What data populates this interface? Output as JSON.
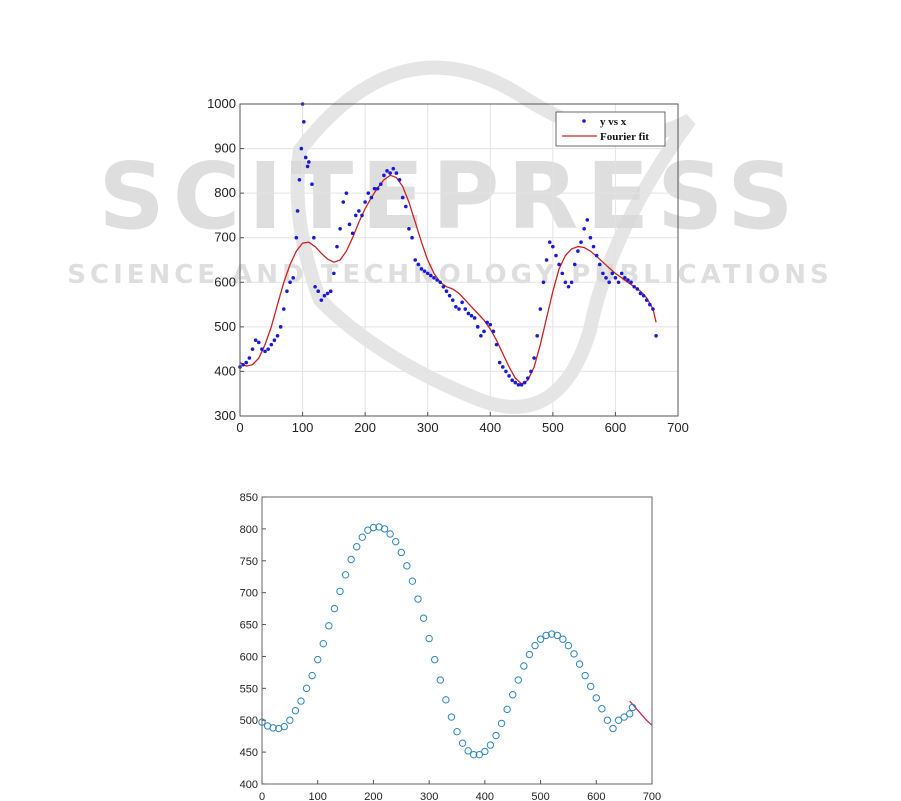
{
  "watermark": {
    "word": "SCITEPRESS",
    "tagline": "SCIENCE AND TECHNOLOGY PUBLICATIONS",
    "color": "#d9d9d9"
  },
  "chart_data": [
    {
      "type": "scatter",
      "xlim": [
        0,
        700
      ],
      "ylim": [
        300,
        1000
      ],
      "xticks": [
        0,
        100,
        200,
        300,
        400,
        500,
        600,
        700
      ],
      "yticks": [
        300,
        400,
        500,
        600,
        700,
        800,
        900,
        1000
      ],
      "grid": true,
      "legend": {
        "placement": "top-right",
        "entries": [
          "y vs x",
          "Fourier fit"
        ]
      },
      "series": [
        {
          "name": "y vs x",
          "style": "points",
          "color": "#1a1ad6",
          "x": [
            0,
            5,
            10,
            15,
            20,
            25,
            30,
            35,
            40,
            45,
            50,
            55,
            60,
            65,
            70,
            75,
            80,
            85,
            90,
            92,
            95,
            98,
            100,
            102,
            105,
            108,
            110,
            115,
            118,
            120,
            125,
            130,
            135,
            140,
            145,
            150,
            155,
            160,
            165,
            170,
            175,
            180,
            185,
            190,
            195,
            200,
            205,
            210,
            215,
            220,
            225,
            230,
            235,
            240,
            245,
            250,
            255,
            260,
            265,
            270,
            275,
            280,
            285,
            290,
            295,
            300,
            305,
            310,
            315,
            320,
            325,
            330,
            335,
            340,
            345,
            350,
            355,
            360,
            365,
            370,
            375,
            380,
            385,
            390,
            395,
            400,
            405,
            410,
            415,
            420,
            425,
            430,
            435,
            440,
            445,
            450,
            455,
            460,
            465,
            470,
            475,
            480,
            485,
            490,
            495,
            500,
            505,
            510,
            515,
            520,
            525,
            530,
            535,
            540,
            545,
            550,
            555,
            560,
            565,
            570,
            575,
            580,
            585,
            590,
            595,
            600,
            605,
            610,
            615,
            620,
            625,
            630,
            635,
            640,
            645,
            650,
            655,
            660,
            665
          ],
          "y": [
            410,
            415,
            420,
            430,
            450,
            470,
            465,
            450,
            445,
            450,
            460,
            470,
            480,
            500,
            540,
            580,
            600,
            610,
            700,
            760,
            830,
            900,
            1000,
            960,
            880,
            860,
            870,
            820,
            700,
            590,
            580,
            560,
            570,
            575,
            580,
            620,
            680,
            720,
            780,
            800,
            730,
            710,
            750,
            760,
            750,
            780,
            800,
            790,
            810,
            810,
            820,
            840,
            850,
            845,
            855,
            845,
            830,
            790,
            770,
            720,
            700,
            650,
            640,
            630,
            625,
            620,
            615,
            610,
            605,
            600,
            590,
            580,
            570,
            560,
            545,
            540,
            555,
            540,
            530,
            525,
            520,
            500,
            480,
            490,
            510,
            505,
            490,
            460,
            420,
            410,
            400,
            390,
            380,
            375,
            370,
            370,
            375,
            385,
            400,
            430,
            480,
            540,
            600,
            650,
            690,
            680,
            660,
            640,
            620,
            600,
            590,
            600,
            640,
            670,
            690,
            720,
            740,
            700,
            680,
            660,
            640,
            620,
            610,
            600,
            620,
            610,
            600,
            620,
            610,
            605,
            600,
            590,
            585,
            575,
            570,
            560,
            550,
            540,
            480
          ]
        },
        {
          "name": "Fourier fit",
          "style": "line",
          "color": "#cc2222",
          "x": [
            0,
            10,
            20,
            30,
            40,
            50,
            60,
            70,
            80,
            90,
            100,
            110,
            120,
            130,
            140,
            150,
            160,
            170,
            180,
            190,
            200,
            210,
            220,
            230,
            240,
            250,
            260,
            270,
            280,
            290,
            300,
            310,
            320,
            330,
            340,
            350,
            360,
            370,
            380,
            390,
            400,
            410,
            420,
            430,
            440,
            450,
            460,
            470,
            480,
            490,
            500,
            510,
            520,
            530,
            540,
            550,
            560,
            570,
            580,
            590,
            600,
            610,
            620,
            630,
            640,
            650,
            660,
            665
          ],
          "y": [
            420,
            412,
            415,
            430,
            460,
            500,
            550,
            600,
            640,
            670,
            688,
            690,
            680,
            665,
            652,
            645,
            650,
            670,
            700,
            735,
            765,
            790,
            812,
            830,
            840,
            835,
            815,
            780,
            735,
            690,
            650,
            620,
            600,
            590,
            585,
            575,
            560,
            545,
            530,
            515,
            495,
            470,
            440,
            410,
            385,
            372,
            380,
            410,
            460,
            520,
            580,
            630,
            660,
            675,
            680,
            678,
            670,
            658,
            645,
            632,
            620,
            610,
            600,
            590,
            580,
            565,
            540,
            510
          ]
        }
      ]
    },
    {
      "type": "scatter",
      "xlim": [
        0,
        700
      ],
      "ylim": [
        400,
        850
      ],
      "xticks": [
        0,
        100,
        200,
        300,
        400,
        500,
        600,
        700
      ],
      "yticks": [
        400,
        450,
        500,
        550,
        600,
        650,
        700,
        750,
        800,
        850
      ],
      "grid": false,
      "series": [
        {
          "style": "open-circles",
          "color": "#2e86c1",
          "x": [
            0,
            10,
            20,
            30,
            40,
            50,
            60,
            70,
            80,
            90,
            100,
            110,
            120,
            130,
            140,
            150,
            160,
            170,
            180,
            190,
            200,
            210,
            220,
            230,
            240,
            250,
            260,
            270,
            280,
            290,
            300,
            310,
            320,
            330,
            340,
            350,
            360,
            370,
            380,
            390,
            400,
            410,
            420,
            430,
            440,
            450,
            460,
            470,
            480,
            490,
            500,
            510,
            520,
            530,
            540,
            550,
            560,
            570,
            580,
            590,
            600,
            610,
            620,
            630,
            640,
            650,
            660,
            665
          ],
          "y": [
            497,
            491,
            488,
            487,
            490,
            500,
            515,
            530,
            550,
            570,
            595,
            620,
            648,
            675,
            702,
            728,
            752,
            772,
            787,
            798,
            802,
            803,
            800,
            792,
            780,
            763,
            742,
            718,
            690,
            660,
            628,
            595,
            563,
            532,
            505,
            482,
            464,
            452,
            446,
            446,
            451,
            461,
            476,
            495,
            517,
            540,
            563,
            585,
            603,
            617,
            627,
            633,
            635,
            633,
            627,
            617,
            604,
            588,
            570,
            553,
            535,
            518,
            500,
            487,
            500,
            505,
            510,
            520
          ]
        },
        {
          "style": "line",
          "color": "#cc2266",
          "x": [
            660,
            670,
            680,
            690,
            700
          ],
          "y": [
            530,
            520,
            510,
            500,
            492
          ]
        }
      ]
    }
  ]
}
